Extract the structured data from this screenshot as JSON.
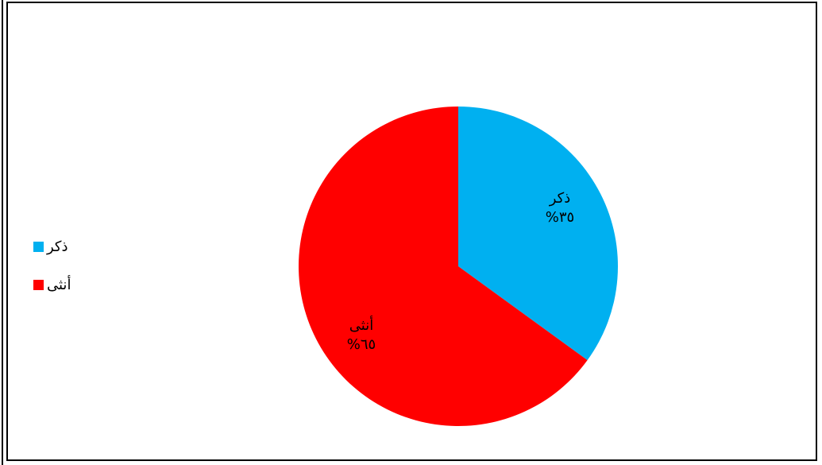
{
  "chart_data": {
    "type": "pie",
    "slices": [
      {
        "label": "ذكر",
        "value": 35,
        "value_label": "%٣٥",
        "color": "#00b0f0"
      },
      {
        "label": "أنثى",
        "value": 65,
        "value_label": "%٦٥",
        "color": "#ff0000"
      }
    ],
    "legend": {
      "placement": "left"
    }
  }
}
